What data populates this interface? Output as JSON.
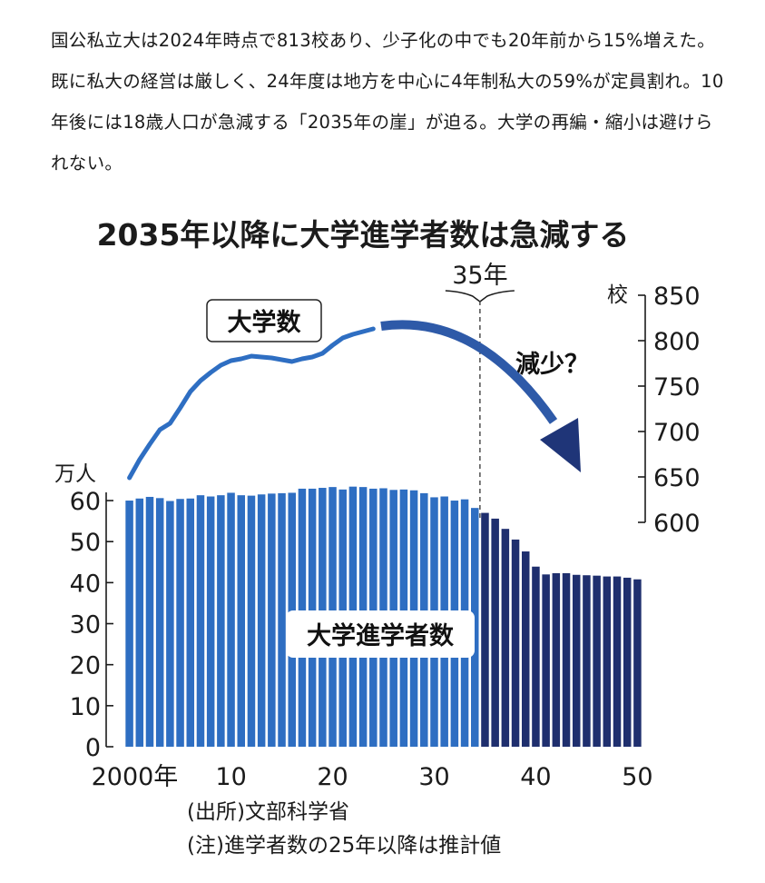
{
  "article": {
    "text": "国公私立大は2024年時点で813校あり、少子化の中でも20年前から15%増えた。既に私大の経営は厳しく、24年度は地方を中心に4年制私大の59%が定員割れ。10年後には18歳人口が急減する「2035年の崖」が迫る。大学の再編・縮小は避けられない。"
  },
  "chart_data": {
    "type": "bar+line",
    "title": "2035年以降に大学進学者数は急減する",
    "marker_label": "35年",
    "marker_year": 2035,
    "x_ticks": [
      "2000年",
      "10",
      "20",
      "30",
      "40",
      "50"
    ],
    "x_tick_years": [
      2000,
      2010,
      2020,
      2030,
      2040,
      2050
    ],
    "left_axis": {
      "unit": "万人",
      "ticks": [
        0,
        10,
        20,
        30,
        40,
        50,
        60
      ],
      "ylim": [
        0,
        62
      ]
    },
    "right_axis": {
      "unit": "校",
      "ticks": [
        600,
        650,
        700,
        750,
        800,
        850
      ],
      "ylim": [
        600,
        850
      ]
    },
    "series": [
      {
        "name": "大学進学者数",
        "type": "bar",
        "axis": "left",
        "x": [
          2000,
          2001,
          2002,
          2003,
          2004,
          2005,
          2006,
          2007,
          2008,
          2009,
          2010,
          2011,
          2012,
          2013,
          2014,
          2015,
          2016,
          2017,
          2018,
          2019,
          2020,
          2021,
          2022,
          2023,
          2024,
          2025,
          2026,
          2027,
          2028,
          2029,
          2030,
          2031,
          2032,
          2033,
          2034,
          2035,
          2036,
          2037,
          2038,
          2039,
          2040,
          2041,
          2042,
          2043,
          2044,
          2045,
          2046,
          2047,
          2048,
          2049,
          2050
        ],
        "values": [
          60.0,
          60.5,
          60.9,
          60.6,
          59.9,
          60.4,
          60.5,
          61.3,
          61.0,
          61.3,
          61.9,
          61.3,
          61.2,
          61.5,
          61.7,
          61.8,
          61.9,
          62.9,
          62.9,
          63.1,
          63.3,
          62.7,
          63.4,
          63.3,
          62.9,
          63.0,
          62.6,
          62.7,
          62.5,
          61.8,
          60.8,
          61.0,
          60.0,
          60.3,
          58.2,
          57.0,
          55.6,
          53.1,
          50.5,
          47.6,
          43.9,
          42.0,
          42.3,
          42.3,
          41.9,
          41.8,
          41.7,
          41.5,
          41.5,
          41.2,
          40.8
        ],
        "projected_from": 2025,
        "color_actual": "#2e6ec2",
        "color_future": "#1f2f6e"
      },
      {
        "name": "大学数",
        "type": "line",
        "axis": "right",
        "x": [
          2000,
          2001,
          2002,
          2003,
          2004,
          2005,
          2006,
          2007,
          2008,
          2009,
          2010,
          2011,
          2012,
          2013,
          2014,
          2015,
          2016,
          2017,
          2018,
          2019,
          2020,
          2021,
          2022,
          2023,
          2024
        ],
        "values": [
          649,
          669,
          686,
          702,
          709,
          726,
          744,
          756,
          765,
          773,
          778,
          780,
          783,
          782,
          781,
          779,
          777,
          780,
          782,
          786,
          795,
          803,
          807,
          810,
          813
        ],
        "color": "#2e6ec2"
      }
    ],
    "annotation": "減少？",
    "notes": [
      "(出所)文部科学省",
      "(注)進学者数の25年以降は推計値"
    ]
  }
}
